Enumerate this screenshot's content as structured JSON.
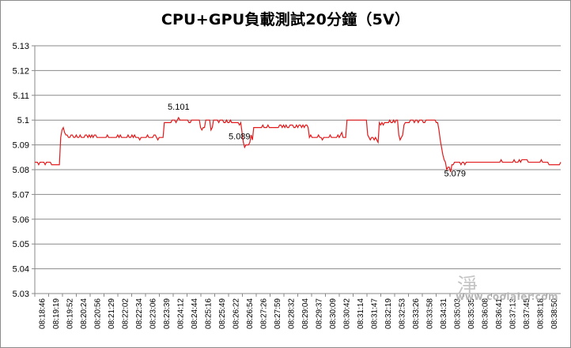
{
  "chart_data": {
    "type": "line",
    "title": "CPU+GPU負載測試20分鐘（5V）",
    "xlabel": "",
    "ylabel": "",
    "ylim": [
      5.03,
      5.13
    ],
    "yticks": [
      "5.03",
      "5.04",
      "5.05",
      "5.06",
      "5.07",
      "5.08",
      "5.09",
      "5.1",
      "5.11",
      "5.12",
      "5.13"
    ],
    "x_tick_labels": [
      "08:18:46",
      "08:19:19",
      "08:19:52",
      "08:20:24",
      "08:20:56",
      "08:21:29",
      "08:22:02",
      "08:22:34",
      "08:23:06",
      "08:23:39",
      "08:24:12",
      "08:24:44",
      "08:25:16",
      "08:25:49",
      "08:26:22",
      "08:26:54",
      "08:27:26",
      "08:27:59",
      "08:28:32",
      "08:29:04",
      "08:29:37",
      "08:30:09",
      "08:30:42",
      "08:31:14",
      "08:31:47",
      "08:32:19",
      "08:32:53",
      "08:33:26",
      "08:33:58",
      "08:34:31",
      "08:35:03",
      "08:35:35",
      "08:36:08",
      "08:36:41",
      "08:37:13",
      "08:37:45",
      "08:38:18",
      "08:38:50"
    ],
    "grid": {
      "horizontal": true,
      "vertical": false
    },
    "legend": "none",
    "line_color": "#e31a1c",
    "series": [
      {
        "values": [
          5.083,
          5.083,
          5.083,
          5.082,
          5.083,
          5.083,
          5.083,
          5.083,
          5.082,
          5.083,
          5.083,
          5.083,
          5.083,
          5.082,
          5.082,
          5.082,
          5.082,
          5.082,
          5.082,
          5.082,
          5.093,
          5.096,
          5.097,
          5.095,
          5.094,
          5.094,
          5.093,
          5.093,
          5.094,
          5.094,
          5.093,
          5.093,
          5.094,
          5.093,
          5.093,
          5.094,
          5.093,
          5.093,
          5.093,
          5.094,
          5.094,
          5.093,
          5.094,
          5.093,
          5.094,
          5.093,
          5.094,
          5.094,
          5.093,
          5.093,
          5.093,
          5.093,
          5.093,
          5.093,
          5.093,
          5.093,
          5.094,
          5.093,
          5.093,
          5.093,
          5.093,
          5.093,
          5.093,
          5.093,
          5.094,
          5.093,
          5.094,
          5.093,
          5.093,
          5.093,
          5.093,
          5.093,
          5.094,
          5.093,
          5.093,
          5.094,
          5.093,
          5.094,
          5.093,
          5.093,
          5.093,
          5.092,
          5.093,
          5.093,
          5.093,
          5.093,
          5.093,
          5.094,
          5.093,
          5.093,
          5.093,
          5.093,
          5.094,
          5.094,
          5.093,
          5.092,
          5.093,
          5.093,
          5.093,
          5.093,
          5.099,
          5.099,
          5.099,
          5.099,
          5.099,
          5.099,
          5.1,
          5.1,
          5.1,
          5.099,
          5.1,
          5.101,
          5.1,
          5.1,
          5.1,
          5.1,
          5.1,
          5.1,
          5.1,
          5.099,
          5.099,
          5.1,
          5.1,
          5.1,
          5.1,
          5.1,
          5.1,
          5.1,
          5.097,
          5.096,
          5.097,
          5.097,
          5.1,
          5.1,
          5.1,
          5.1,
          5.096,
          5.097,
          5.1,
          5.1,
          5.1,
          5.1,
          5.099,
          5.1,
          5.1,
          5.1,
          5.099,
          5.099,
          5.1,
          5.099,
          5.099,
          5.1,
          5.099,
          5.099,
          5.099,
          5.099,
          5.099,
          5.099,
          5.098,
          5.099,
          5.095,
          5.091,
          5.089,
          5.09,
          5.09,
          5.09,
          5.091,
          5.094,
          5.092,
          5.097,
          5.097,
          5.097,
          5.097,
          5.097,
          5.097,
          5.097,
          5.098,
          5.097,
          5.097,
          5.097,
          5.098,
          5.097,
          5.097,
          5.097,
          5.097,
          5.097,
          5.097,
          5.097,
          5.097,
          5.098,
          5.098,
          5.097,
          5.098,
          5.097,
          5.098,
          5.097,
          5.097,
          5.098,
          5.098,
          5.098,
          5.097,
          5.097,
          5.098,
          5.097,
          5.098,
          5.098,
          5.097,
          5.098,
          5.097,
          5.098,
          5.098,
          5.097,
          5.093,
          5.094,
          5.093,
          5.093,
          5.093,
          5.093,
          5.093,
          5.094,
          5.093,
          5.093,
          5.092,
          5.093,
          5.093,
          5.093,
          5.093,
          5.093,
          5.094,
          5.093,
          5.093,
          5.093,
          5.093,
          5.093,
          5.094,
          5.093,
          5.094,
          5.095,
          5.093,
          5.093,
          5.093,
          5.1,
          5.1,
          5.1,
          5.1,
          5.1,
          5.1,
          5.1,
          5.1,
          5.1,
          5.1,
          5.1,
          5.1,
          5.1,
          5.1,
          5.1,
          5.1,
          5.094,
          5.093,
          5.092,
          5.093,
          5.093,
          5.092,
          5.093,
          5.092,
          5.091,
          5.099,
          5.098,
          5.099,
          5.098,
          5.099,
          5.099,
          5.099,
          5.099,
          5.1,
          5.099,
          5.099,
          5.1,
          5.099,
          5.1,
          5.1,
          5.094,
          5.092,
          5.093,
          5.094,
          5.098,
          5.099,
          5.099,
          5.099,
          5.099,
          5.1,
          5.1,
          5.1,
          5.099,
          5.1,
          5.1,
          5.099,
          5.1,
          5.1,
          5.1,
          5.099,
          5.099,
          5.1,
          5.1,
          5.1,
          5.1,
          5.1,
          5.1,
          5.1,
          5.1,
          5.099,
          5.099,
          5.096,
          5.092,
          5.089,
          5.086,
          5.084,
          5.083,
          5.08,
          5.081,
          5.081,
          5.079,
          5.082,
          5.082,
          5.083,
          5.083,
          5.083,
          5.083,
          5.083,
          5.082,
          5.083,
          5.083,
          5.082,
          5.083,
          5.083,
          5.083,
          5.083,
          5.083,
          5.083,
          5.083,
          5.083,
          5.083,
          5.083,
          5.083,
          5.083,
          5.083,
          5.083,
          5.083,
          5.083,
          5.083,
          5.083,
          5.083,
          5.083,
          5.083,
          5.083,
          5.083,
          5.083,
          5.083,
          5.083,
          5.083,
          5.084,
          5.083,
          5.083,
          5.083,
          5.083,
          5.083,
          5.083,
          5.083,
          5.083,
          5.083,
          5.084,
          5.083,
          5.083,
          5.083,
          5.084,
          5.083,
          5.084,
          5.084,
          5.084,
          5.084,
          5.084,
          5.083,
          5.083,
          5.083,
          5.083,
          5.083,
          5.083,
          5.083,
          5.083,
          5.083,
          5.083,
          5.084,
          5.083,
          5.083,
          5.083,
          5.083,
          5.083,
          5.082,
          5.082,
          5.082,
          5.082,
          5.082,
          5.082,
          5.082,
          5.082,
          5.082,
          5.083
        ]
      }
    ],
    "annotations": [
      {
        "text": "5.101",
        "point_index": 111
      },
      {
        "text": "5.089",
        "point_index": 158
      },
      {
        "text": "5.079",
        "point_index": 317
      }
    ]
  },
  "watermark": "www.coolaler.com",
  "watermark_mark": "淨"
}
